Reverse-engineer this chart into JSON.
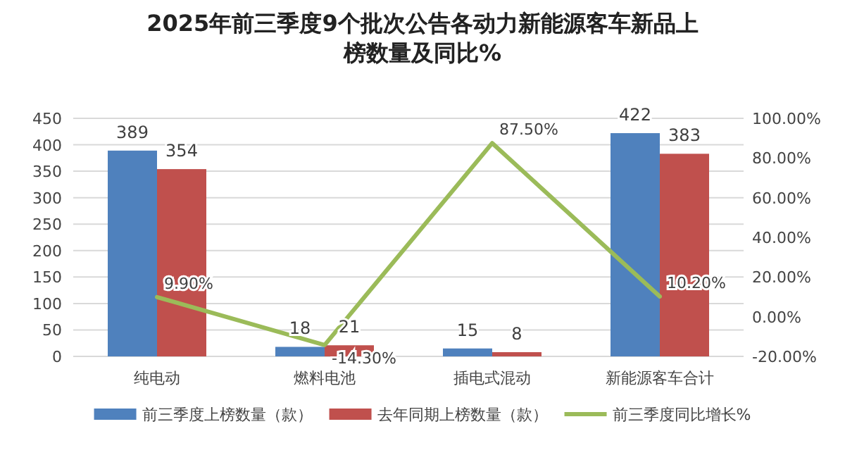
{
  "chart_data": {
    "type": "bar",
    "title": "2025年前三季度9个批次公告各动力新能源客车新品上榜数量及同比%",
    "categories": [
      "纯电动",
      "燃料电池",
      "插电式混动",
      "新能源客车合计"
    ],
    "series": [
      {
        "name": "前三季度上榜数量（款）",
        "color": "#4f81bd",
        "values": [
          389,
          18,
          15,
          422
        ]
      },
      {
        "name": "去年同期上榜数量（款）",
        "color": "#c0504d",
        "values": [
          354,
          21,
          8,
          383
        ]
      },
      {
        "name": "前三季度同比增长%",
        "type": "line",
        "axis": "y2",
        "color": "#9bbb59",
        "values": [
          9.9,
          -14.3,
          87.5,
          10.2
        ],
        "value_labels": [
          "9.90%",
          "-14.30%",
          "87.50%",
          "10.20%"
        ]
      }
    ],
    "ylim": [
      0,
      450
    ],
    "yticks": [
      0,
      50,
      100,
      150,
      200,
      250,
      300,
      350,
      400,
      450
    ],
    "y2lim": [
      -20,
      100
    ],
    "y2ticks": [
      {
        "value": -20,
        "label": "-20.00%"
      },
      {
        "value": 0,
        "label": "0.00%"
      },
      {
        "value": 20,
        "label": "20.00%"
      },
      {
        "value": 40,
        "label": "40.00%"
      },
      {
        "value": 60,
        "label": "60.00%"
      },
      {
        "value": 80,
        "label": "80.00%"
      },
      {
        "value": 100,
        "label": "100.00%"
      }
    ],
    "grid": "y",
    "legend": "bottom",
    "data_labels": true
  }
}
